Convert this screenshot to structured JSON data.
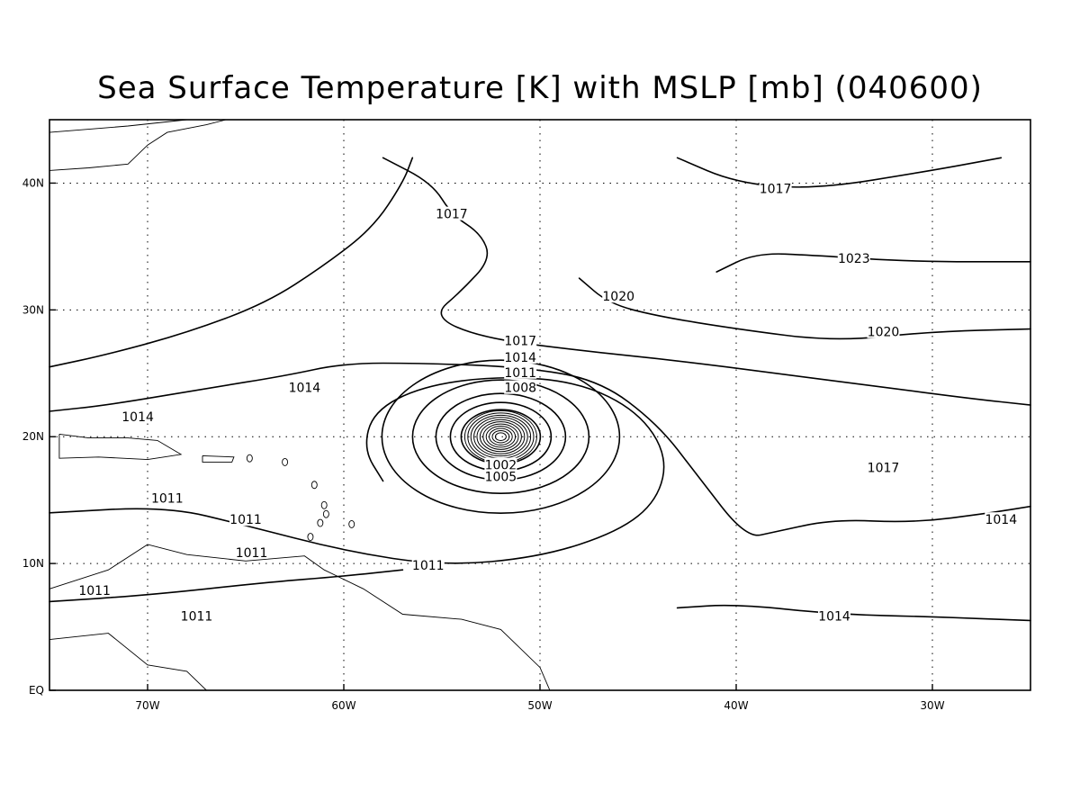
{
  "title": "Sea Surface Temperature [K] with MSLP [mb] (040600)",
  "map": {
    "projection": "lat-lon",
    "lon_range": [
      -75,
      -25
    ],
    "lat_range": [
      0,
      45
    ],
    "gridlines": "dotted",
    "x_ticks": [
      {
        "lon": -70,
        "label": "70W"
      },
      {
        "lon": -60,
        "label": "60W"
      },
      {
        "lon": -50,
        "label": "50W"
      },
      {
        "lon": -40,
        "label": "40W"
      },
      {
        "lon": -30,
        "label": "30W"
      }
    ],
    "y_ticks": [
      {
        "lat": 0,
        "label": "EQ"
      },
      {
        "lat": 10,
        "label": "10N"
      },
      {
        "lat": 20,
        "label": "20N"
      },
      {
        "lat": 30,
        "label": "30N"
      },
      {
        "lat": 40,
        "label": "40N"
      }
    ]
  },
  "chart_data": {
    "type": "contour",
    "variable": "MSLP",
    "units": "mb",
    "cyclone_center": {
      "lon": -52,
      "lat": 20
    },
    "contour_labels": [
      {
        "text": "1017",
        "lon": -38,
        "lat": 39.5
      },
      {
        "text": "1017",
        "lon": -54.5,
        "lat": 37.5
      },
      {
        "text": "1023",
        "lon": -34,
        "lat": 34
      },
      {
        "text": "1020",
        "lon": -46,
        "lat": 31
      },
      {
        "text": "1020",
        "lon": -32.5,
        "lat": 28.2
      },
      {
        "text": "1017",
        "lon": -51,
        "lat": 27.5
      },
      {
        "text": "1014",
        "lon": -51,
        "lat": 26.2
      },
      {
        "text": "1014",
        "lon": -62,
        "lat": 23.8
      },
      {
        "text": "1014",
        "lon": -70.5,
        "lat": 21.5
      },
      {
        "text": "1011",
        "lon": -51,
        "lat": 25
      },
      {
        "text": "1008",
        "lon": -51,
        "lat": 23.8
      },
      {
        "text": "1002",
        "lon": -52,
        "lat": 17.7
      },
      {
        "text": "1005",
        "lon": -52,
        "lat": 16.8
      },
      {
        "text": "1017",
        "lon": -32.5,
        "lat": 17.5
      },
      {
        "text": "1014",
        "lon": -26.5,
        "lat": 13.4
      },
      {
        "text": "1014",
        "lon": -35,
        "lat": 5.8
      },
      {
        "text": "1011",
        "lon": -69,
        "lat": 15.1
      },
      {
        "text": "1011",
        "lon": -65,
        "lat": 13.4
      },
      {
        "text": "1011",
        "lon": -64.7,
        "lat": 10.8
      },
      {
        "text": "1011",
        "lon": -55.7,
        "lat": 9.8
      },
      {
        "text": "1011",
        "lon": -72.7,
        "lat": 7.8
      },
      {
        "text": "1011",
        "lon": -67.5,
        "lat": 5.8
      }
    ],
    "isobars": [
      {
        "level": 1017,
        "lonlat": [
          [
            -75,
            25.5
          ],
          [
            -72,
            26.5
          ],
          [
            -68,
            28.2
          ],
          [
            -64,
            30.5
          ],
          [
            -61,
            33.5
          ],
          [
            -58.5,
            36.5
          ],
          [
            -57,
            40
          ],
          [
            -56.5,
            42
          ]
        ]
      },
      {
        "level": 1017,
        "lonlat": [
          [
            -58,
            42
          ],
          [
            -55.5,
            40
          ],
          [
            -54.5,
            37.5
          ],
          [
            -53,
            36
          ],
          [
            -52.5,
            34
          ],
          [
            -54,
            31.5
          ],
          [
            -55.5,
            29.5
          ],
          [
            -53,
            27.8
          ],
          [
            -48,
            26.8
          ],
          [
            -43,
            26
          ],
          [
            -38,
            25
          ],
          [
            -33,
            24
          ],
          [
            -28,
            23
          ],
          [
            -25,
            22.5
          ]
        ]
      },
      {
        "level": 1020,
        "lonlat": [
          [
            -48,
            32.5
          ],
          [
            -46.5,
            30.5
          ],
          [
            -44,
            29.5
          ],
          [
            -40,
            28.5
          ],
          [
            -35,
            27.5
          ],
          [
            -30,
            28.3
          ],
          [
            -25,
            28.5
          ]
        ]
      },
      {
        "level": 1023,
        "lonlat": [
          [
            -41,
            33
          ],
          [
            -39,
            34.5
          ],
          [
            -36,
            34.3
          ],
          [
            -31,
            33.8
          ],
          [
            -25,
            33.8
          ]
        ]
      },
      {
        "level": 1017,
        "lonlat": [
          [
            -43,
            42
          ],
          [
            -40,
            40
          ],
          [
            -36,
            39.5
          ],
          [
            -30,
            41
          ],
          [
            -26.5,
            42
          ]
        ]
      },
      {
        "level": 1014,
        "lonlat": [
          [
            -75,
            22
          ],
          [
            -72,
            22.5
          ],
          [
            -67,
            23.8
          ],
          [
            -63,
            24.8
          ],
          [
            -60,
            25.8
          ],
          [
            -56,
            25.8
          ],
          [
            -51,
            25.5
          ],
          [
            -47,
            24.5
          ],
          [
            -44,
            21
          ],
          [
            -42,
            17
          ],
          [
            -39.5,
            12
          ],
          [
            -38,
            12.5
          ],
          [
            -35,
            13.5
          ],
          [
            -31,
            13.2
          ],
          [
            -27,
            14
          ],
          [
            -25,
            14.5
          ]
        ]
      },
      {
        "level": 1011,
        "lonlat": [
          [
            -75,
            14
          ],
          [
            -69,
            14.5
          ],
          [
            -65,
            13
          ],
          [
            -60,
            11
          ],
          [
            -55,
            9.8
          ],
          [
            -50,
            10.5
          ],
          [
            -46,
            12.5
          ],
          [
            -44,
            15
          ],
          [
            -43.5,
            18.5
          ],
          [
            -45,
            22
          ],
          [
            -48,
            24.3
          ],
          [
            -52,
            24.8
          ],
          [
            -56,
            24
          ],
          [
            -58.5,
            22
          ],
          [
            -59,
            19
          ],
          [
            -58,
            16.5
          ]
        ]
      },
      {
        "level": 1014,
        "lonlat": [
          [
            -75,
            7
          ],
          [
            -70,
            7.5
          ],
          [
            -64,
            8.5
          ],
          [
            -60,
            9
          ],
          [
            -57,
            9.5
          ]
        ]
      },
      {
        "level": 1014,
        "lonlat": [
          [
            -43,
            6.5
          ],
          [
            -40,
            6.8
          ],
          [
            -35,
            6
          ],
          [
            -30,
            5.8
          ],
          [
            -25,
            5.5
          ]
        ]
      }
    ]
  },
  "colors": {
    "lines": "#000000",
    "background": "#ffffff"
  }
}
